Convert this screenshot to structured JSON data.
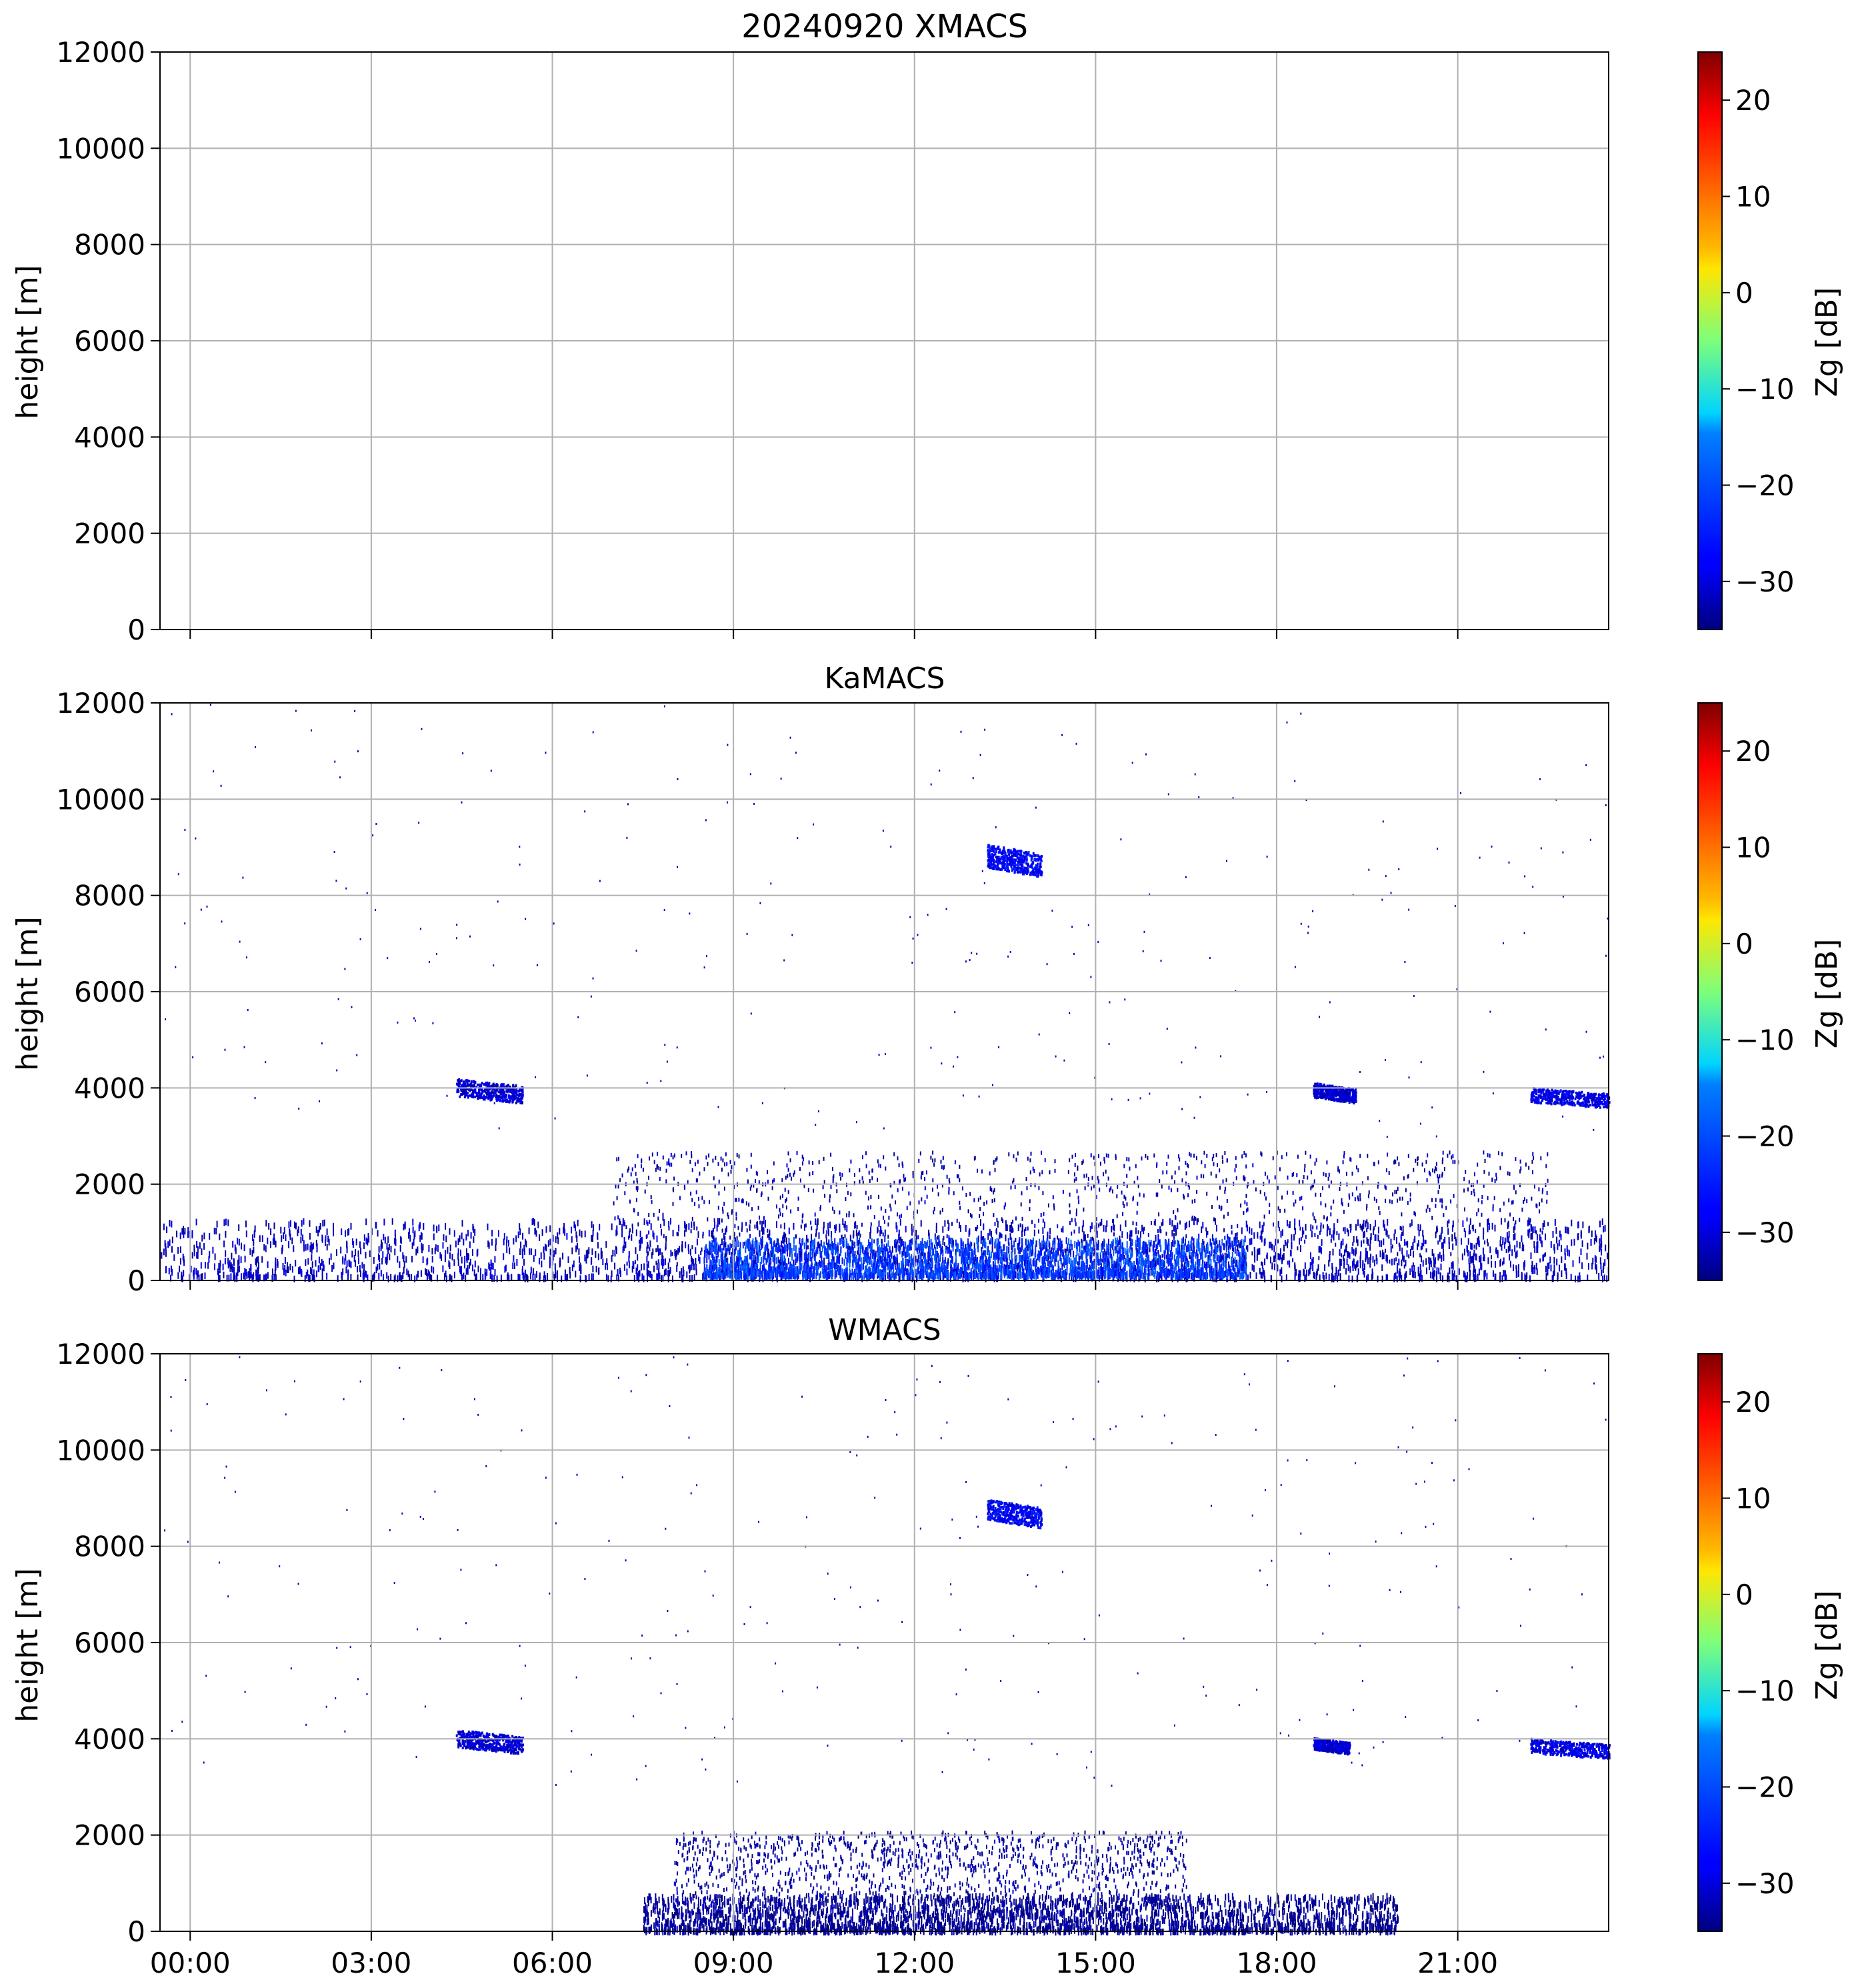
{
  "figure": {
    "title": "20240920 XMACS"
  },
  "chart_data": [
    {
      "type": "heatmap",
      "panel": "top",
      "title": "20240920 XMACS",
      "instrument": "XMACS",
      "xlabel": "",
      "ylabel": "height [m]",
      "xlim_hours": [
        -0.5,
        23.5
      ],
      "ylim": [
        0,
        12000
      ],
      "yticks": [
        0,
        2000,
        4000,
        6000,
        8000,
        10000,
        12000
      ],
      "xticks_hours": [
        0,
        3,
        6,
        9,
        12,
        15,
        18,
        21
      ],
      "xtick_labels": [],
      "grid": true,
      "colorbar": {
        "label": "Zg [dB]",
        "range": [
          -35,
          25
        ],
        "ticks": [
          -30,
          -20,
          -10,
          0,
          10,
          20
        ],
        "colormap": "jet"
      },
      "features": []
    },
    {
      "type": "heatmap",
      "panel": "middle",
      "title": "KaMACS",
      "instrument": "KaMACS",
      "xlabel": "",
      "ylabel": "height [m]",
      "xlim_hours": [
        -0.5,
        23.5
      ],
      "ylim": [
        0,
        12000
      ],
      "yticks": [
        0,
        2000,
        4000,
        6000,
        8000,
        10000,
        12000
      ],
      "xticks_hours": [
        0,
        3,
        6,
        9,
        12,
        15,
        18,
        21
      ],
      "xtick_labels": [],
      "grid": true,
      "colorbar": {
        "label": "Zg [dB]",
        "range": [
          -35,
          25
        ],
        "ticks": [
          -30,
          -20,
          -10,
          0,
          10,
          20
        ],
        "colormap": "jet"
      },
      "features": [
        {
          "kind": "layer",
          "t_start": 4.4,
          "t_end": 5.5,
          "h_bottom": 3700,
          "h_top": 4300,
          "z": -30
        },
        {
          "kind": "layer",
          "t_start": 13.2,
          "t_end": 14.1,
          "h_bottom": 8400,
          "h_top": 9200,
          "z": -28
        },
        {
          "kind": "layer",
          "t_start": 18.6,
          "t_end": 19.3,
          "h_bottom": 3700,
          "h_top": 4200,
          "z": -30
        },
        {
          "kind": "layer",
          "t_start": 22.2,
          "t_end": 23.5,
          "h_bottom": 3600,
          "h_top": 4100,
          "z": -29
        },
        {
          "kind": "boundary",
          "t_start": -0.5,
          "t_end": 23.5,
          "h_bottom": 100,
          "h_top": 1300,
          "z": -31
        },
        {
          "kind": "boundary",
          "t_start": 8.5,
          "t_end": 17.5,
          "h_bottom": 150,
          "h_top": 900,
          "z": -24
        },
        {
          "kind": "scatter",
          "t_start": 7.0,
          "t_end": 22.5,
          "h_bottom": 300,
          "h_top": 2700,
          "z": -32
        }
      ]
    },
    {
      "type": "heatmap",
      "panel": "bottom",
      "title": "WMACS",
      "instrument": "WMACS",
      "xlabel": "",
      "ylabel": "height [m]",
      "xlim_hours": [
        -0.5,
        23.5
      ],
      "ylim": [
        0,
        12000
      ],
      "yticks": [
        0,
        2000,
        4000,
        6000,
        8000,
        10000,
        12000
      ],
      "xticks_hours": [
        0,
        3,
        6,
        9,
        12,
        15,
        18,
        21
      ],
      "xtick_labels": [
        "00:00",
        "03:00",
        "06:00",
        "09:00",
        "12:00",
        "15:00",
        "18:00",
        "21:00"
      ],
      "grid": true,
      "colorbar": {
        "label": "Zg [dB]",
        "range": [
          -35,
          25
        ],
        "ticks": [
          -30,
          -20,
          -10,
          0,
          10,
          20
        ],
        "colormap": "jet"
      },
      "features": [
        {
          "kind": "layer",
          "t_start": 4.4,
          "t_end": 5.5,
          "h_bottom": 3700,
          "h_top": 4300,
          "z": -30
        },
        {
          "kind": "layer",
          "t_start": 13.2,
          "t_end": 14.1,
          "h_bottom": 8400,
          "h_top": 9100,
          "z": -28
        },
        {
          "kind": "layer",
          "t_start": 18.6,
          "t_end": 19.2,
          "h_bottom": 3700,
          "h_top": 4100,
          "z": -30
        },
        {
          "kind": "layer",
          "t_start": 22.2,
          "t_end": 23.5,
          "h_bottom": 3600,
          "h_top": 4100,
          "z": -29
        },
        {
          "kind": "boundary",
          "t_start": 7.5,
          "t_end": 20.0,
          "h_bottom": 50,
          "h_top": 800,
          "z": -34
        },
        {
          "kind": "scatter",
          "t_start": 8.0,
          "t_end": 16.5,
          "h_bottom": 300,
          "h_top": 2100,
          "z": -33
        }
      ]
    }
  ]
}
